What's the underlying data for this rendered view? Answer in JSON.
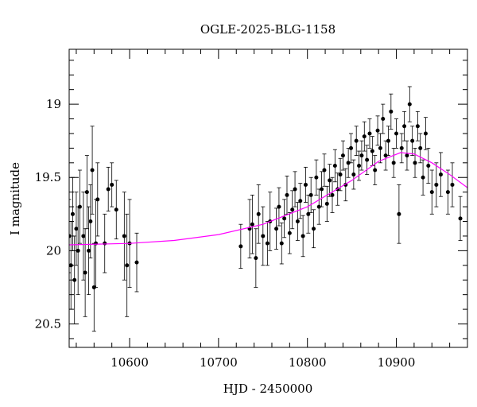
{
  "chart_data": {
    "type": "scatter",
    "title": "OGLE-2025-BLG-1158",
    "xlabel": "HJD - 2450000",
    "ylabel": "I magnitude",
    "xlim": [
      10532,
      10980
    ],
    "ylim": [
      20.66,
      18.625
    ],
    "y_inverted": true,
    "xticks": [
      10600,
      10700,
      10800,
      10900
    ],
    "xtick_labels": [
      "10600",
      "10700",
      "10800",
      "10900"
    ],
    "yticks": [
      19,
      19.5,
      20,
      20.5
    ],
    "ytick_labels": [
      "19",
      "19.5",
      "20",
      "20.5"
    ],
    "x_minor_step": 20,
    "y_minor_step": 0.1,
    "grid": false,
    "colors": {
      "points": "#000000",
      "errorbars": "#000000",
      "model": "#ff00ff"
    },
    "points_format": [
      "HJD-2450000",
      "I magnitude",
      "error"
    ],
    "points": [
      [
        10532,
        19.9,
        0.25
      ],
      [
        10534,
        20.1,
        0.3
      ],
      [
        10536,
        19.75,
        0.25
      ],
      [
        10538,
        20.2,
        0.3
      ],
      [
        10540,
        19.85,
        0.25
      ],
      [
        10542,
        20.0,
        0.3
      ],
      [
        10544,
        19.7,
        0.25
      ],
      [
        10548,
        19.9,
        0.3
      ],
      [
        10550,
        20.15,
        0.3
      ],
      [
        10552,
        19.6,
        0.25
      ],
      [
        10554,
        20.0,
        0.3
      ],
      [
        10556,
        19.8,
        0.25
      ],
      [
        10558,
        19.45,
        0.3
      ],
      [
        10560,
        20.25,
        0.3
      ],
      [
        10562,
        19.95,
        0.3
      ],
      [
        10564,
        19.65,
        0.25
      ],
      [
        10572,
        19.95,
        0.2
      ],
      [
        10576,
        19.58,
        0.15
      ],
      [
        10580,
        19.55,
        0.15
      ],
      [
        10585,
        19.72,
        0.2
      ],
      [
        10594,
        19.9,
        0.3
      ],
      [
        10597,
        20.1,
        0.35
      ],
      [
        10600,
        19.95,
        0.3
      ],
      [
        10608,
        20.08,
        0.2
      ],
      [
        10725,
        19.97,
        0.15
      ],
      [
        10735,
        19.85,
        0.2
      ],
      [
        10738,
        19.82,
        0.2
      ],
      [
        10742,
        20.05,
        0.2
      ],
      [
        10745,
        19.75,
        0.2
      ],
      [
        10750,
        19.9,
        0.2
      ],
      [
        10755,
        19.95,
        0.15
      ],
      [
        10758,
        19.8,
        0.2
      ],
      [
        10765,
        19.85,
        0.14
      ],
      [
        10768,
        19.7,
        0.13
      ],
      [
        10771,
        19.95,
        0.14
      ],
      [
        10774,
        19.78,
        0.13
      ],
      [
        10777,
        19.62,
        0.13
      ],
      [
        10780,
        19.88,
        0.14
      ],
      [
        10783,
        19.72,
        0.13
      ],
      [
        10786,
        19.58,
        0.12
      ],
      [
        10789,
        19.8,
        0.13
      ],
      [
        10792,
        19.66,
        0.12
      ],
      [
        10795,
        19.9,
        0.14
      ],
      [
        10798,
        19.55,
        0.12
      ],
      [
        10801,
        19.75,
        0.13
      ],
      [
        10804,
        19.62,
        0.12
      ],
      [
        10807,
        19.85,
        0.13
      ],
      [
        10810,
        19.5,
        0.12
      ],
      [
        10813,
        19.7,
        0.12
      ],
      [
        10816,
        19.58,
        0.12
      ],
      [
        10819,
        19.45,
        0.11
      ],
      [
        10822,
        19.68,
        0.12
      ],
      [
        10825,
        19.52,
        0.11
      ],
      [
        10828,
        19.62,
        0.12
      ],
      [
        10831,
        19.42,
        0.11
      ],
      [
        10834,
        19.58,
        0.11
      ],
      [
        10837,
        19.48,
        0.11
      ],
      [
        10840,
        19.35,
        0.1
      ],
      [
        10843,
        19.55,
        0.11
      ],
      [
        10846,
        19.4,
        0.1
      ],
      [
        10849,
        19.3,
        0.1
      ],
      [
        10852,
        19.48,
        0.1
      ],
      [
        10855,
        19.25,
        0.1
      ],
      [
        10858,
        19.42,
        0.1
      ],
      [
        10861,
        19.35,
        0.1
      ],
      [
        10864,
        19.22,
        0.1
      ],
      [
        10867,
        19.38,
        0.1
      ],
      [
        10870,
        19.2,
        0.1
      ],
      [
        10873,
        19.32,
        0.1
      ],
      [
        10876,
        19.45,
        0.1
      ],
      [
        10879,
        19.18,
        0.1
      ],
      [
        10882,
        19.3,
        0.1
      ],
      [
        10885,
        19.1,
        0.1
      ],
      [
        10888,
        19.35,
        0.1
      ],
      [
        10891,
        19.25,
        0.1
      ],
      [
        10894,
        19.05,
        0.12
      ],
      [
        10897,
        19.4,
        0.1
      ],
      [
        10900,
        19.2,
        0.1
      ],
      [
        10903,
        19.75,
        0.2
      ],
      [
        10906,
        19.3,
        0.1
      ],
      [
        10909,
        19.15,
        0.1
      ],
      [
        10912,
        19.35,
        0.1
      ],
      [
        10915,
        19.0,
        0.12
      ],
      [
        10918,
        19.25,
        0.1
      ],
      [
        10921,
        19.4,
        0.1
      ],
      [
        10924,
        19.15,
        0.1
      ],
      [
        10927,
        19.3,
        0.1
      ],
      [
        10930,
        19.5,
        0.12
      ],
      [
        10933,
        19.2,
        0.11
      ],
      [
        10936,
        19.42,
        0.12
      ],
      [
        10940,
        19.6,
        0.15
      ],
      [
        10945,
        19.55,
        0.15
      ],
      [
        10950,
        19.48,
        0.15
      ],
      [
        10958,
        19.6,
        0.15
      ],
      [
        10963,
        19.55,
        0.15
      ],
      [
        10972,
        19.78,
        0.15
      ]
    ],
    "model_curve": [
      [
        10532,
        19.96
      ],
      [
        10600,
        19.95
      ],
      [
        10650,
        19.93
      ],
      [
        10700,
        19.89
      ],
      [
        10750,
        19.82
      ],
      [
        10800,
        19.7
      ],
      [
        10850,
        19.52
      ],
      [
        10880,
        19.39
      ],
      [
        10905,
        19.33
      ],
      [
        10920,
        19.34
      ],
      [
        10940,
        19.4
      ],
      [
        10960,
        19.48
      ],
      [
        10980,
        19.57
      ]
    ]
  }
}
